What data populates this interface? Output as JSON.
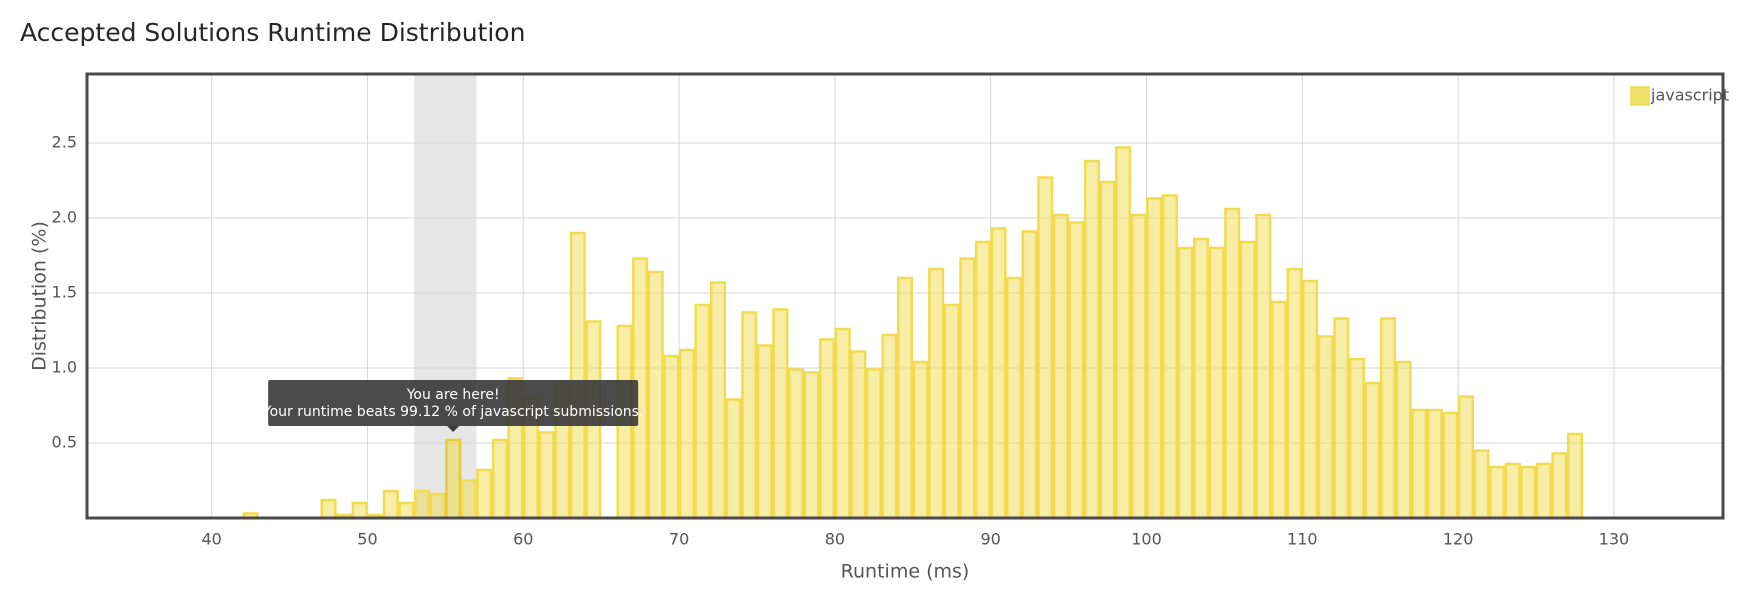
{
  "chart_data": {
    "type": "histogram",
    "title": "Accepted Solutions Runtime Distribution",
    "x_label": "Runtime (ms)",
    "y_label": "Distribution (%)",
    "bins": [
      42,
      43,
      44,
      45,
      46,
      47,
      48,
      49,
      50,
      51,
      52,
      53,
      54,
      55,
      56,
      57,
      58,
      59,
      60,
      61,
      62,
      63,
      64,
      65,
      66,
      67,
      68,
      69,
      70,
      71,
      72,
      73,
      74,
      75,
      76,
      77,
      78,
      79,
      80,
      81,
      82,
      83,
      84,
      85,
      86,
      87,
      88,
      89,
      90,
      91,
      92,
      93,
      94,
      95,
      96,
      97,
      98,
      99,
      100,
      101,
      102,
      103,
      104,
      105,
      106,
      107,
      108,
      109,
      110,
      111,
      112,
      113,
      114,
      115,
      116,
      117,
      118,
      119,
      120,
      121,
      122,
      123,
      124,
      125,
      126,
      127,
      128
    ],
    "series": [
      {
        "name": "javascript",
        "color": "#f0dc4e",
        "values": [
          0.03,
          0,
          0,
          0,
          0,
          0.12,
          0.02,
          0.1,
          0.02,
          0.18,
          0.1,
          0.18,
          0.16,
          0.52,
          0.25,
          0.32,
          0.52,
          0.93,
          0.8,
          0.57,
          0.9,
          1.9,
          1.31,
          0,
          1.28,
          1.73,
          1.64,
          1.08,
          1.12,
          1.42,
          1.57,
          0.79,
          1.37,
          1.15,
          1.39,
          0.99,
          0.97,
          1.19,
          1.26,
          1.11,
          0.99,
          1.22,
          1.6,
          1.04,
          1.66,
          1.42,
          1.73,
          1.84,
          1.93,
          1.6,
          1.91,
          2.27,
          2.02,
          1.97,
          2.38,
          2.24,
          2.47,
          2.02,
          2.13,
          2.15,
          1.8,
          1.86,
          1.8,
          2.06,
          1.84,
          2.02,
          1.44,
          1.66,
          1.58,
          1.21,
          1.33,
          1.06,
          0.9,
          1.33,
          1.04,
          0.72,
          0.72,
          0.7,
          0.81,
          0.45,
          0.34,
          0.36,
          0.34,
          0.36,
          0.43,
          0.56
        ]
      }
    ],
    "xlim": [
      32,
      137
    ],
    "ylim": [
      0,
      2.96
    ],
    "xticks": [
      40,
      50,
      60,
      70,
      80,
      90,
      100,
      110,
      120,
      130
    ],
    "yticks": [
      0.5,
      {
        "value": 1,
        "label": "1.0"
      },
      1.5,
      {
        "value": 2,
        "label": "2.0"
      },
      2.5
    ],
    "grid": true,
    "legend": "top-right",
    "highlight_range": [
      53,
      57
    ],
    "highlight_bin": 55,
    "tooltip": {
      "title": "You are here!",
      "text": "Your runtime beats 99.12 % of javascript submissions."
    }
  }
}
